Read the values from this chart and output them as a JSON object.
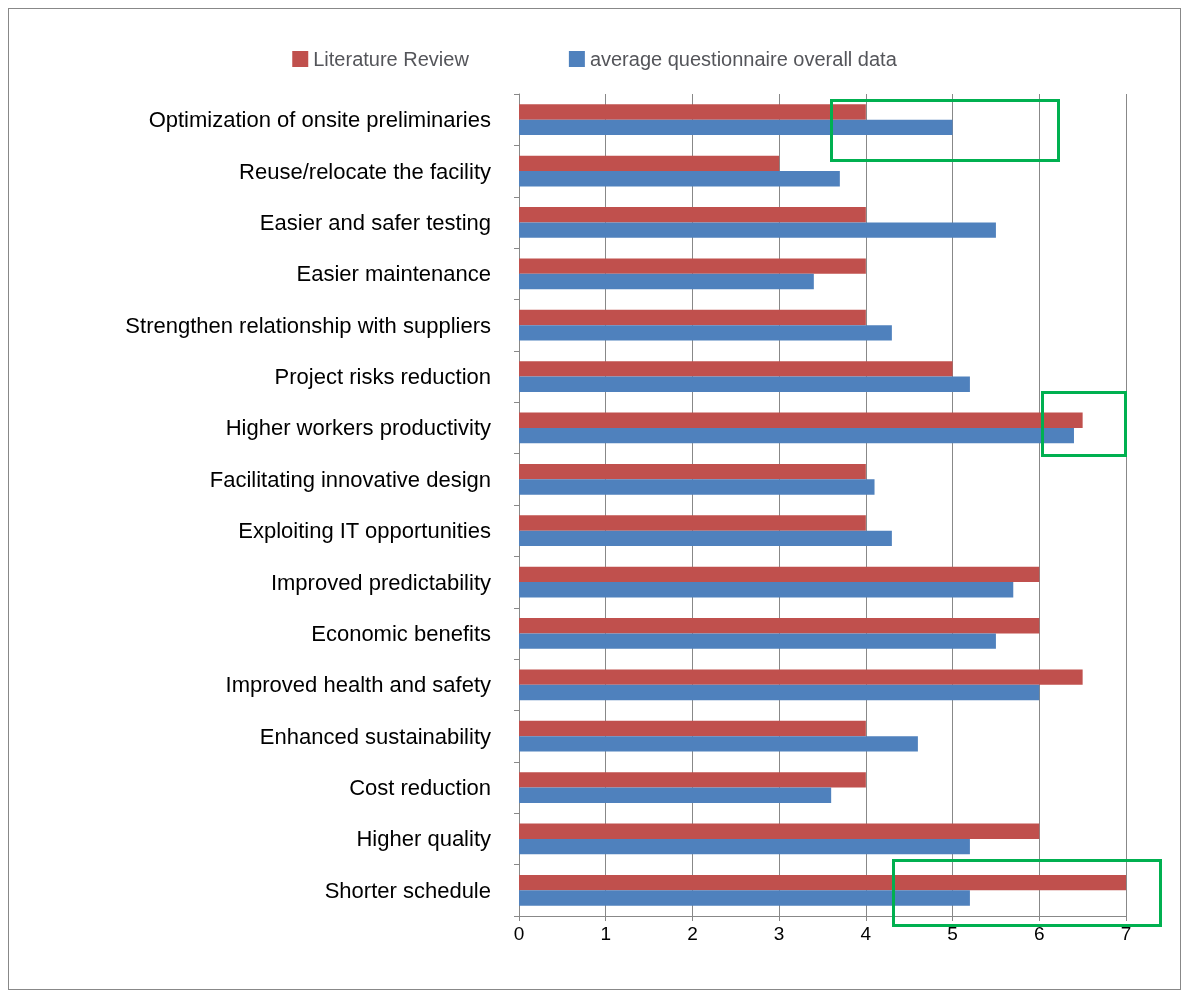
{
  "chart_data": {
    "type": "bar",
    "orientation": "horizontal",
    "categories": [
      "Optimization of onsite preliminaries",
      "Reuse/relocate the facility",
      "Easier and safer testing",
      "Easier maintenance",
      "Strengthen relationship with suppliers",
      "Project risks reduction",
      "Higher workers productivity",
      "Facilitating innovative design",
      "Exploiting IT opportunities",
      "Improved predictability",
      "Economic benefits",
      "Improved health and safety",
      "Enhanced sustainability",
      "Cost reduction",
      "Higher quality",
      "Shorter schedule"
    ],
    "series": [
      {
        "name": "Literature Review",
        "color": "#c0504d",
        "values": [
          4.0,
          3.0,
          4.0,
          4.0,
          4.0,
          5.0,
          6.5,
          4.0,
          4.0,
          6.0,
          6.0,
          6.5,
          4.0,
          4.0,
          6.0,
          7.0
        ]
      },
      {
        "name": "average questionnaire overall data",
        "color": "#4f81bd",
        "values": [
          5.0,
          3.7,
          5.5,
          3.4,
          4.3,
          5.2,
          6.4,
          4.1,
          4.3,
          5.7,
          5.5,
          6.0,
          4.6,
          3.6,
          5.2,
          5.2
        ]
      }
    ],
    "xlim": [
      0,
      7
    ],
    "xticks": [
      0,
      1,
      2,
      3,
      4,
      5,
      6,
      7
    ],
    "grid": "x",
    "legend": "top"
  }
}
